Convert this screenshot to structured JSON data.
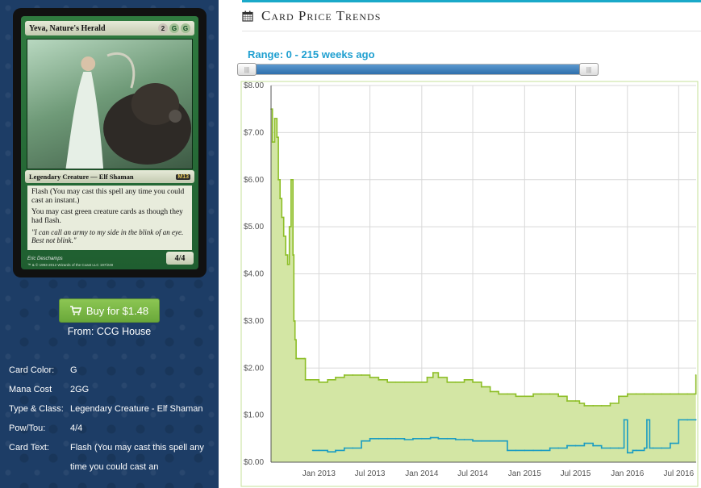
{
  "card": {
    "name": "Yeva, Nature's Herald",
    "mana_cost_symbols": [
      "2",
      "G",
      "G"
    ],
    "type_line": "Legendary Creature — Elf Shaman",
    "set_symbol": "M13",
    "rules_text": [
      "Flash (You may cast this spell any time you could cast an instant.)",
      "You may cast green creature cards as though they had flash."
    ],
    "flavor_text": "\"I can call an army to my side in the blink of an eye. Best not blink.\"",
    "power_toughness": "4/4",
    "artist": "Eric Deschamps",
    "copyright": "™ & © 1993-2012 Wizards of the Coast LLC 197/249"
  },
  "buy": {
    "label": "Buy for $1.48",
    "from": "From: CCG House",
    "icon": "shopping-cart-icon"
  },
  "details": [
    {
      "key": "Card Color:",
      "value": "G"
    },
    {
      "key": "Mana Cost",
      "value": "2GG"
    },
    {
      "key": "Type & Class:",
      "value": "Legendary Creature - Elf Shaman"
    },
    {
      "key": "Pow/Tou:",
      "value": "4/4"
    },
    {
      "key": "Card Text:",
      "value": "Flash (You may cast this spell any time you could cast an"
    }
  ],
  "section": {
    "title": "Card Price Trends",
    "icon": "calendar-icon"
  },
  "range": {
    "label": "Range: 0 - 215 weeks ago",
    "min_weeks": 0,
    "max_weeks": 215
  },
  "colors": {
    "accent": "#1aa9c9",
    "sidebar_bg": "#1d3d66",
    "buy_button": "#7bb848",
    "series_paper": "#8dbe27",
    "series_paper_fill": "#d3e6a4",
    "series_foil": "#1a9cc2"
  },
  "chart_data": {
    "type": "line",
    "title": "",
    "xlabel": "",
    "ylabel": "",
    "x_ticks": [
      "Jan 2013",
      "Jul 2013",
      "Jan 2014",
      "Jul 2014",
      "Jan 2015",
      "Jul 2015",
      "Jan 2016",
      "Jul 2016"
    ],
    "y_ticks": [
      "$0.00",
      "$1.00",
      "$2.00",
      "$3.00",
      "$4.00",
      "$5.00",
      "$6.00",
      "$7.00",
      "$8.00"
    ],
    "ylim": [
      0,
      8
    ],
    "xlim": [
      "2012-07-15",
      "2016-09-01"
    ],
    "grid": true,
    "series": [
      {
        "area": true,
        "x": [
          "2012-07-15",
          "2012-07-20",
          "2012-07-28",
          "2012-08-05",
          "2012-08-10",
          "2012-08-16",
          "2012-08-22",
          "2012-08-29",
          "2012-09-05",
          "2012-09-12",
          "2012-09-18",
          "2012-09-24",
          "2012-10-01",
          "2012-10-04",
          "2012-10-08",
          "2012-10-12",
          "2012-10-16",
          "2012-11-10",
          "2012-11-14",
          "2012-12-01",
          "2013-01-01",
          "2013-02-01",
          "2013-03-01",
          "2013-04-01",
          "2013-05-01",
          "2013-06-01",
          "2013-07-01",
          "2013-08-01",
          "2013-09-01",
          "2013-10-01",
          "2013-11-01",
          "2013-12-01",
          "2014-01-01",
          "2014-01-20",
          "2014-02-10",
          "2014-03-01",
          "2014-04-01",
          "2014-05-01",
          "2014-06-01",
          "2014-07-01",
          "2014-08-01",
          "2014-09-01",
          "2014-09-25",
          "2014-10-01",
          "2014-11-01",
          "2014-12-01",
          "2015-01-01",
          "2015-02-01",
          "2015-03-01",
          "2015-04-01",
          "2015-05-01",
          "2015-06-01",
          "2015-07-01",
          "2015-07-15",
          "2015-08-01",
          "2015-09-01",
          "2015-10-01",
          "2015-11-01",
          "2015-12-01",
          "2016-01-01",
          "2016-02-01",
          "2016-03-01",
          "2016-04-01",
          "2016-05-01",
          "2016-06-01",
          "2016-07-01",
          "2016-08-01",
          "2016-08-25",
          "2016-08-31"
        ],
        "y": [
          7.5,
          6.8,
          7.3,
          6.9,
          6.0,
          5.6,
          5.2,
          4.8,
          4.4,
          4.2,
          5.0,
          6.0,
          4.4,
          3.0,
          2.6,
          2.2,
          2.2,
          2.2,
          1.75,
          1.75,
          1.7,
          1.75,
          1.8,
          1.85,
          1.85,
          1.85,
          1.8,
          1.75,
          1.7,
          1.7,
          1.7,
          1.7,
          1.7,
          1.8,
          1.9,
          1.8,
          1.7,
          1.7,
          1.75,
          1.7,
          1.6,
          1.5,
          1.5,
          1.45,
          1.45,
          1.4,
          1.4,
          1.45,
          1.45,
          1.45,
          1.4,
          1.3,
          1.3,
          1.25,
          1.2,
          1.2,
          1.2,
          1.25,
          1.4,
          1.45,
          1.45,
          1.45,
          1.45,
          1.45,
          1.45,
          1.45,
          1.45,
          1.45,
          1.85
        ]
      },
      {
        "x": [
          "2012-12-10",
          "2013-01-01",
          "2013-02-01",
          "2013-03-01",
          "2013-04-01",
          "2013-05-01",
          "2013-06-01",
          "2013-07-01",
          "2013-08-01",
          "2013-09-01",
          "2013-10-01",
          "2013-11-01",
          "2013-12-01",
          "2014-01-01",
          "2014-02-01",
          "2014-03-01",
          "2014-04-01",
          "2014-05-01",
          "2014-06-01",
          "2014-07-01",
          "2014-08-01",
          "2014-09-01",
          "2014-10-01",
          "2014-11-01",
          "2014-12-01",
          "2015-01-01",
          "2015-02-01",
          "2015-03-01",
          "2015-04-01",
          "2015-05-01",
          "2015-06-01",
          "2015-07-01",
          "2015-08-01",
          "2015-09-01",
          "2015-10-01",
          "2015-11-01",
          "2015-12-01",
          "2015-12-20",
          "2016-01-01",
          "2016-01-10",
          "2016-01-20",
          "2016-02-01",
          "2016-03-01",
          "2016-03-10",
          "2016-03-20",
          "2016-04-01",
          "2016-05-01",
          "2016-06-01",
          "2016-07-01",
          "2016-08-01",
          "2016-08-31"
        ],
        "y": [
          0.25,
          0.25,
          0.22,
          0.25,
          0.3,
          0.3,
          0.45,
          0.5,
          0.5,
          0.5,
          0.5,
          0.48,
          0.5,
          0.5,
          0.52,
          0.5,
          0.5,
          0.48,
          0.48,
          0.45,
          0.45,
          0.45,
          0.45,
          0.25,
          0.25,
          0.25,
          0.25,
          0.25,
          0.3,
          0.3,
          0.35,
          0.35,
          0.4,
          0.35,
          0.3,
          0.3,
          0.3,
          0.9,
          0.2,
          0.2,
          0.25,
          0.25,
          0.3,
          0.9,
          0.3,
          0.3,
          0.3,
          0.4,
          0.9,
          0.9,
          0.9
        ]
      }
    ]
  }
}
